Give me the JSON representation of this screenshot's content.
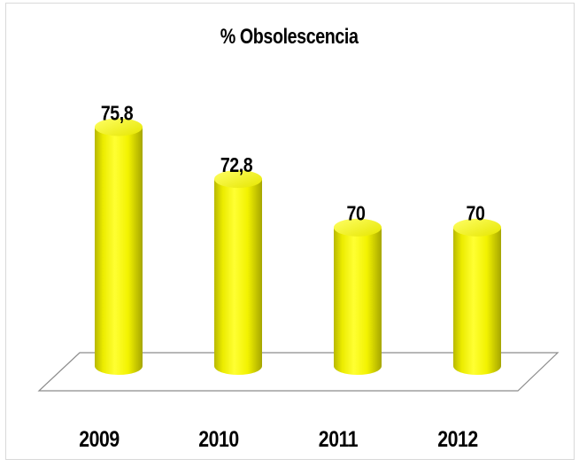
{
  "chart_data": {
    "type": "bar",
    "title": "% Obsolescencia",
    "categories": [
      "2009",
      "2010",
      "2011",
      "2012"
    ],
    "values": [
      75.8,
      72.8,
      70,
      70
    ],
    "data_labels": [
      "75,8",
      "72,8",
      "70",
      "70"
    ],
    "xlabel": "",
    "ylabel": "",
    "ylim": [
      62,
      77
    ],
    "style": "3d-cylinder",
    "grid": false,
    "legend": "none",
    "bar_color": "#ffff00",
    "bar_shadow_color": "#b3b300",
    "floor_color": "#ffffff",
    "floor_edge_color": "#8c8c8c",
    "frame_color": "#d9d9d9"
  }
}
